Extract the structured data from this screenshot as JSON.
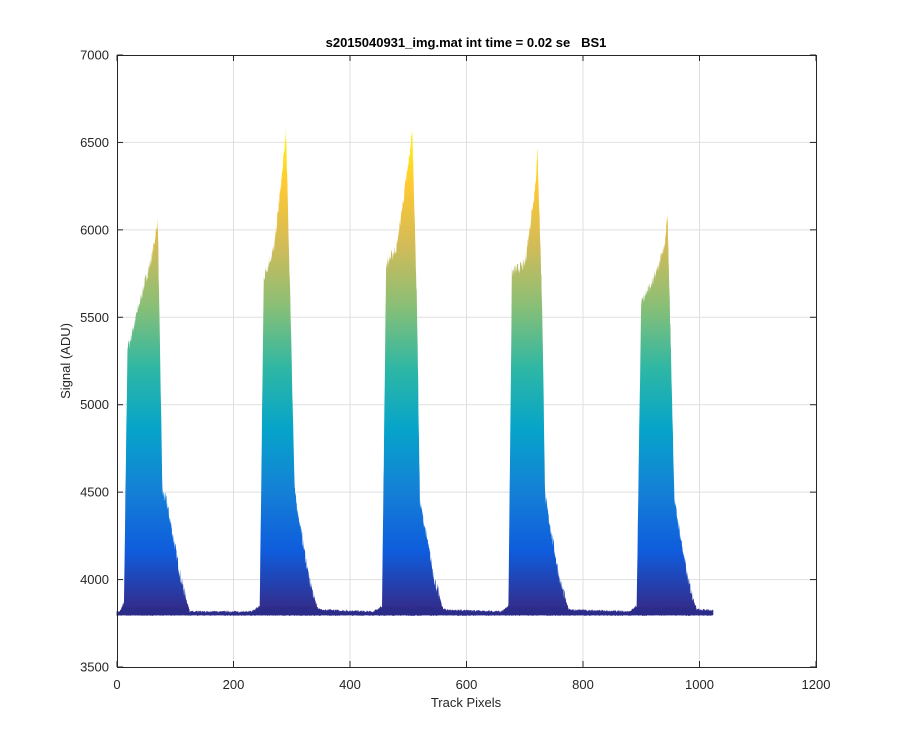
{
  "chart_data": {
    "type": "area",
    "title": "s2015040931_img.mat int time = 0.02 se   BS1",
    "xlabel": "Track Pixels",
    "ylabel": "Signal (ADU)",
    "xlim": [
      0,
      1200
    ],
    "ylim": [
      3500,
      7000
    ],
    "xticks": [
      "0",
      "200",
      "400",
      "600",
      "800",
      "1000",
      "1200"
    ],
    "yticks": [
      "3500",
      "4000",
      "4500",
      "5000",
      "5500",
      "6000",
      "6500",
      "7000"
    ],
    "grid": true,
    "colormap": [
      "#352a87",
      "#0f5cdd",
      "#1481d6",
      "#06a4ca",
      "#2eb7a4",
      "#87bf77",
      "#d1bb59",
      "#fec832",
      "#f9fb0e"
    ],
    "baseline_color": "#2b2c8a",
    "baseline": 3815,
    "data_range": [
      0,
      1023
    ],
    "profile": {
      "x": [
        0,
        5,
        12,
        18,
        22,
        40,
        60,
        70,
        78,
        85,
        110,
        125,
        135,
        230,
        238,
        245,
        252,
        270,
        285,
        290,
        298,
        305,
        330,
        345,
        355,
        440,
        448,
        455,
        462,
        480,
        500,
        507,
        515,
        520,
        545,
        560,
        570,
        660,
        666,
        672,
        678,
        700,
        718,
        722,
        730,
        735,
        760,
        775,
        785,
        880,
        886,
        892,
        900,
        920,
        940,
        945,
        952,
        957,
        980,
        995,
        1005,
        1023
      ],
      "y": [
        3815,
        3815,
        3870,
        5330,
        5360,
        5600,
        5850,
        6050,
        4500,
        4450,
        4000,
        3815,
        3815,
        3815,
        3830,
        3850,
        5730,
        5900,
        6370,
        6570,
        5530,
        4500,
        4000,
        3830,
        3825,
        3815,
        3830,
        3850,
        5800,
        5900,
        6370,
        6570,
        5560,
        4450,
        4000,
        3830,
        3825,
        3815,
        3830,
        3850,
        5760,
        5800,
        6250,
        6450,
        5550,
        4470,
        4000,
        3830,
        3825,
        3815,
        3830,
        3850,
        5600,
        5700,
        5900,
        6100,
        5160,
        4450,
        4000,
        3830,
        3825,
        3825
      ]
    }
  }
}
